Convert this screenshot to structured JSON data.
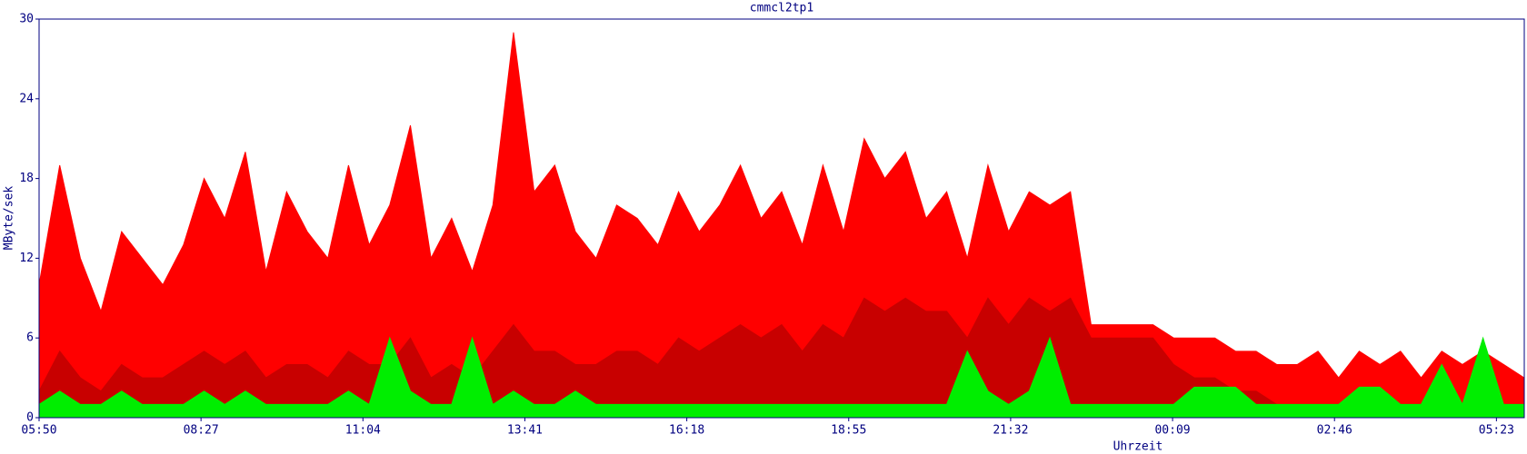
{
  "chart_data": {
    "type": "area",
    "title": "cmmcl2tp1",
    "ylabel": "MByte/sek",
    "xlabel": "Uhrzeit",
    "x": [
      0,
      20,
      40,
      60,
      80,
      100,
      120,
      140,
      160,
      180,
      200,
      220,
      240,
      260,
      280,
      300,
      320,
      340,
      360,
      380,
      400,
      420,
      440,
      460,
      480,
      500,
      520,
      540,
      560,
      580,
      600,
      620,
      640,
      660,
      680,
      700,
      720,
      740,
      760,
      780,
      800,
      820,
      840,
      860,
      880,
      900,
      920,
      940,
      960,
      980,
      1000,
      1020,
      1040,
      1060,
      1080,
      1100,
      1120,
      1140,
      1160,
      1180,
      1200,
      1220,
      1240,
      1260,
      1280,
      1300,
      1320,
      1340,
      1360,
      1380,
      1400,
      1420,
      1440
    ],
    "series": [
      {
        "color": "#ff0000",
        "values": [
          10,
          19,
          12,
          8,
          14,
          12,
          10,
          13,
          18,
          15,
          20,
          11,
          17,
          14,
          12,
          19,
          13,
          16,
          22,
          12,
          15,
          11,
          16,
          29,
          17,
          19,
          14,
          12,
          16,
          15,
          13,
          17,
          14,
          16,
          19,
          15,
          17,
          13,
          19,
          14,
          21,
          18,
          20,
          15,
          17,
          12,
          19,
          14,
          17,
          16,
          17,
          7,
          7,
          7,
          7,
          6,
          6,
          6,
          5,
          5,
          4,
          4,
          5,
          3,
          5,
          4,
          5,
          3,
          5,
          4,
          5,
          4,
          3
        ]
      },
      {
        "color": "#c80000",
        "values": [
          2,
          5,
          3,
          2,
          4,
          3,
          3,
          4,
          5,
          4,
          5,
          3,
          4,
          4,
          3,
          5,
          4,
          4,
          6,
          3,
          4,
          3,
          5,
          7,
          5,
          5,
          4,
          4,
          5,
          5,
          4,
          6,
          5,
          6,
          7,
          6,
          7,
          5,
          7,
          6,
          9,
          8,
          9,
          8,
          8,
          6,
          9,
          7,
          9,
          8,
          9,
          6,
          6,
          6,
          6,
          4,
          3,
          3,
          2,
          2,
          1,
          1,
          1,
          1,
          1,
          1,
          1,
          1,
          1,
          1,
          1,
          1,
          1
        ]
      },
      {
        "color": "#00ee00",
        "values": [
          1,
          2,
          1,
          1,
          2,
          1,
          1,
          1,
          2,
          1,
          2,
          1,
          1,
          1,
          1,
          2,
          1,
          6,
          2,
          1,
          1,
          6,
          1,
          2,
          1,
          1,
          2,
          1,
          1,
          1,
          1,
          1,
          1,
          1,
          1,
          1,
          1,
          1,
          1,
          1,
          1,
          1,
          1,
          1,
          1,
          5,
          2,
          1,
          2,
          6,
          1,
          1,
          1,
          1,
          1,
          1,
          2.3,
          2.3,
          2.3,
          1,
          1,
          1,
          1,
          1,
          2.3,
          2.3,
          1,
          1,
          4,
          1,
          6,
          1,
          1
        ]
      }
    ],
    "xlim": [
      0,
      1440
    ],
    "ylim": [
      0,
      30
    ],
    "yticks": [
      0,
      6,
      12,
      18,
      24,
      30
    ],
    "xticks": [
      {
        "value": 0,
        "label": "05:50"
      },
      {
        "value": 157,
        "label": "08:27"
      },
      {
        "value": 314,
        "label": "11:04"
      },
      {
        "value": 471,
        "label": "13:41"
      },
      {
        "value": 628,
        "label": "16:18"
      },
      {
        "value": 785,
        "label": "18:55"
      },
      {
        "value": 942,
        "label": "21:32"
      },
      {
        "value": 1099,
        "label": "00:09"
      },
      {
        "value": 1256,
        "label": "02:46"
      },
      {
        "value": 1413,
        "label": "05:23"
      }
    ]
  }
}
